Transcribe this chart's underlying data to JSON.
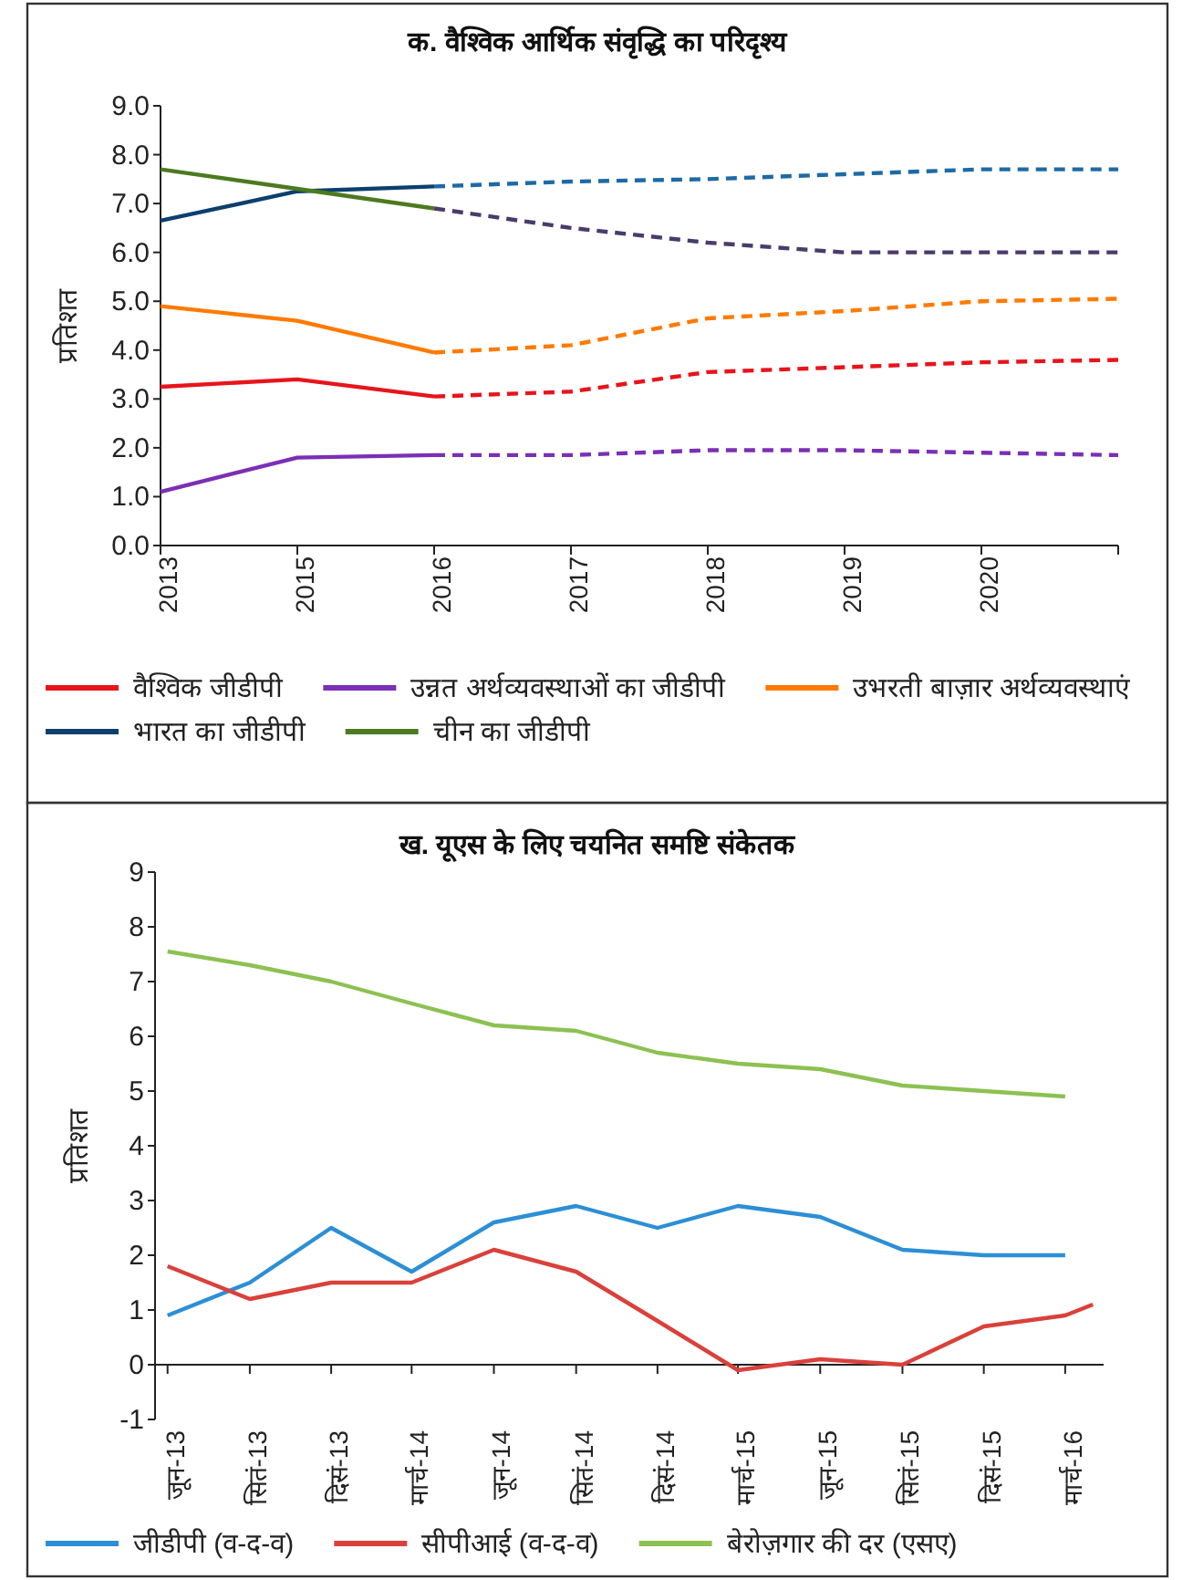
{
  "chart_data": [
    {
      "type": "line",
      "title": "क. वैश्विक आर्थिक संवृद्धि का परिदृश्य",
      "ylabel": "प्रतिशत",
      "legend": "bottom",
      "categories": [
        "2013",
        "2015",
        "2016",
        "2017",
        "2018",
        "2019",
        "2020",
        null
      ],
      "ylim": [
        0,
        9
      ],
      "yticks": [
        {
          "value": 0,
          "label": "0.0"
        },
        {
          "value": 1,
          "label": "1.0"
        },
        {
          "value": 2,
          "label": "2.0"
        },
        {
          "value": 3,
          "label": "3.0"
        },
        {
          "value": 4,
          "label": "4.0"
        },
        {
          "value": 5,
          "label": "5.0"
        },
        {
          "value": 6,
          "label": "6.0"
        },
        {
          "value": 7,
          "label": "7.0"
        },
        {
          "value": 8,
          "label": "8.0"
        },
        {
          "value": 9,
          "label": "9.0"
        }
      ],
      "series": [
        {
          "name": "वैश्विक जीडीपी",
          "color": "#e8141b",
          "line_style": "solid",
          "values": [
            3.25,
            3.4,
            3.05,
            null,
            null,
            null,
            null,
            null
          ]
        },
        {
          "name": "उन्नत अर्थव्यवस्थाओं का जीडीपी",
          "color": "#7b2fb5",
          "line_style": "solid",
          "values": [
            1.1,
            1.8,
            1.85,
            null,
            null,
            null,
            null,
            null
          ]
        },
        {
          "name": "उभरती बाज़ार अर्थव्यवस्थाएं",
          "color": "#ff7a00",
          "line_style": "solid",
          "values": [
            4.9,
            4.6,
            3.95,
            null,
            null,
            null,
            null,
            null
          ]
        },
        {
          "name": "भारत का जीडीपी",
          "color": "#0d3f6e",
          "line_style": "solid",
          "values": [
            6.65,
            7.25,
            7.35,
            null,
            null,
            null,
            null,
            null
          ]
        },
        {
          "name": "चीन का जीडीपी",
          "color": "#4c7a1f",
          "line_style": "solid",
          "values": [
            7.7,
            7.3,
            6.9,
            null,
            null,
            null,
            null,
            null
          ]
        },
        {
          "color": "#e8141b",
          "line_style": "dashed",
          "values": [
            null,
            null,
            3.05,
            3.15,
            3.55,
            3.65,
            3.75,
            3.8
          ]
        },
        {
          "color": "#7b2fb5",
          "line_style": "dashed",
          "values": [
            null,
            null,
            1.85,
            1.85,
            1.95,
            1.95,
            1.9,
            1.85
          ]
        },
        {
          "color": "#ff7a00",
          "line_style": "dashed",
          "values": [
            null,
            null,
            3.95,
            4.1,
            4.65,
            4.8,
            5.0,
            5.05
          ]
        },
        {
          "color": "#1d6aa5",
          "line_style": "dashed",
          "values": [
            null,
            null,
            7.35,
            7.45,
            7.5,
            7.6,
            7.7,
            7.7
          ]
        },
        {
          "color": "#4b3b6b",
          "line_style": "dashed",
          "values": [
            null,
            null,
            6.9,
            6.5,
            6.2,
            6.0,
            6.0,
            6.0
          ]
        }
      ]
    },
    {
      "type": "line",
      "title": "ख. यूएस के लिए चयनित समष्टि संकेतक",
      "ylabel": "प्रतिशत",
      "legend": "bottom",
      "x": [
        "2013-06",
        "2013-09",
        "2013-12",
        "2014-03",
        "2014-06",
        "2014-09",
        "2014-12",
        "2015-03",
        "2015-06",
        "2015-09",
        "2015-12",
        "2016-03"
      ],
      "xlim": [
        "2013-05-18",
        "2016-04-13"
      ],
      "xticks": [
        {
          "value": "2013-06",
          "label": "जून-13"
        },
        {
          "value": "2013-09",
          "label": "सितं-13"
        },
        {
          "value": "2013-12",
          "label": "दिसं-13"
        },
        {
          "value": "2014-03",
          "label": "मार्च-14"
        },
        {
          "value": "2014-06",
          "label": "जून-14"
        },
        {
          "value": "2014-09",
          "label": "सितं-14"
        },
        {
          "value": "2014-12",
          "label": "दिसं-14"
        },
        {
          "value": "2015-03",
          "label": "मार्च-15"
        },
        {
          "value": "2015-06",
          "label": "जून-15"
        },
        {
          "value": "2015-09",
          "label": "सितं-15"
        },
        {
          "value": "2015-12",
          "label": "दिसं-15"
        },
        {
          "value": "2016-03",
          "label": "मार्च-16"
        }
      ],
      "ylim": [
        -1,
        9
      ],
      "yticks": [
        -1,
        0,
        1,
        2,
        3,
        4,
        5,
        6,
        7,
        8,
        9
      ],
      "series": [
        {
          "name": "जीडीपी (व-द-व)",
          "color": "#2c8fd6",
          "values": [
            0.9,
            1.5,
            2.5,
            1.7,
            2.6,
            2.9,
            2.5,
            2.9,
            2.7,
            2.1,
            2.0,
            2.0
          ]
        },
        {
          "name": "सीपीआई (व-द-व)",
          "color": "#d9413a",
          "x": [
            "2013-06",
            "2013-09",
            "2013-12",
            "2014-03",
            "2014-06",
            "2014-09",
            "2014-12",
            "2015-03",
            "2015-06",
            "2015-09",
            "2015-12",
            "2016-03",
            "2016-04"
          ],
          "values": [
            1.8,
            1.2,
            1.5,
            1.5,
            2.1,
            1.7,
            0.8,
            -0.1,
            0.1,
            0.0,
            0.7,
            0.9,
            1.1
          ]
        },
        {
          "name": "बेरोज़गार की दर (एसए)",
          "color": "#8cc152",
          "values": [
            7.55,
            7.3,
            7.0,
            6.6,
            6.2,
            6.1,
            5.7,
            5.5,
            5.4,
            5.1,
            5.0,
            4.9
          ]
        }
      ]
    }
  ]
}
